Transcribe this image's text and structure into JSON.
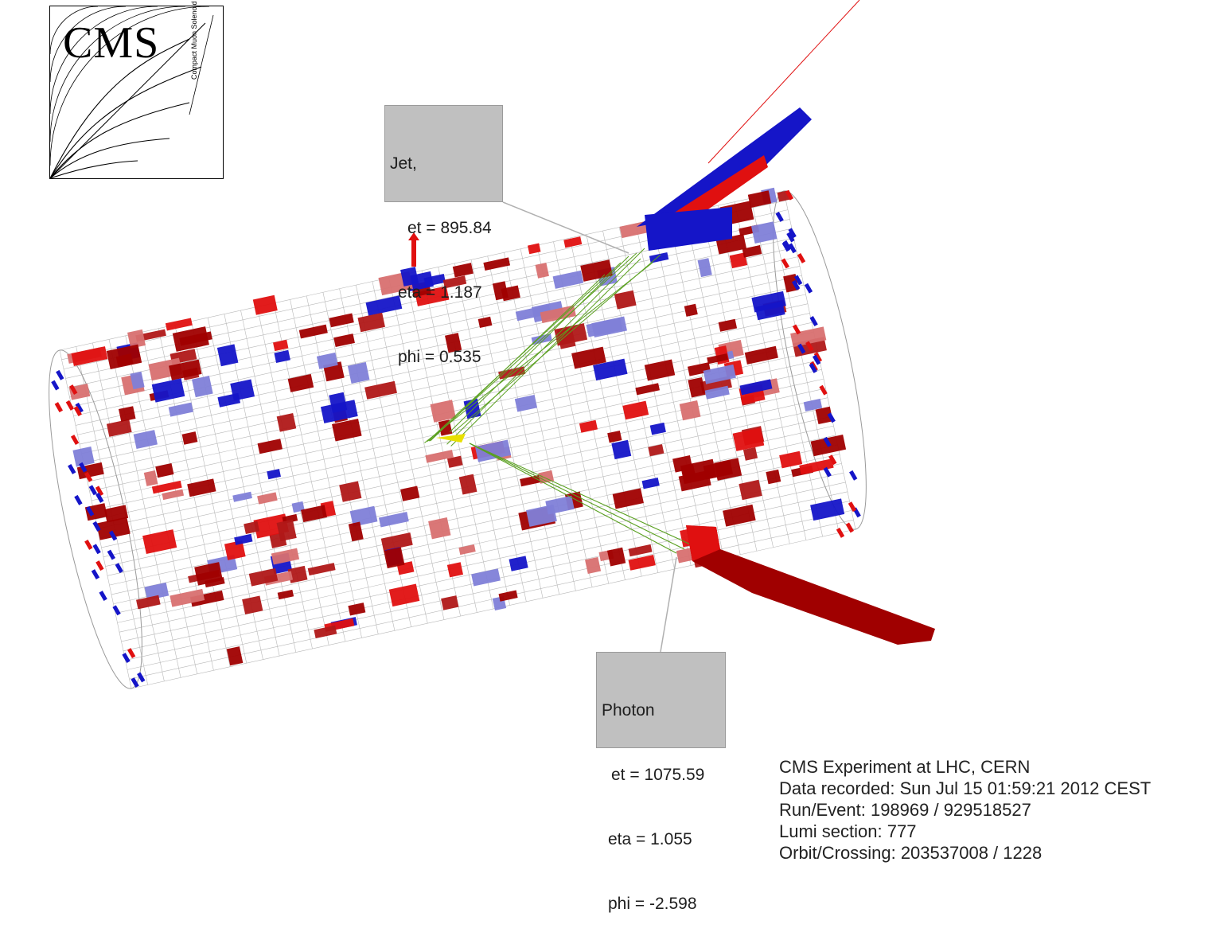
{
  "logo": {
    "word": "CMS",
    "subtitle": "Compact Muon Solenoid"
  },
  "jet_label": {
    "title": "Jet,",
    "et": "et = 895.84",
    "eta": "eta = 1.187",
    "phi": "phi = 0.535"
  },
  "photon_label": {
    "title": "Photon",
    "et": "et = 1075.59",
    "eta": "eta = 1.055",
    "phi": "phi = -2.598"
  },
  "event_info": {
    "experiment": "CMS Experiment at LHC, CERN",
    "recorded": "Data recorded: Sun Jul 15 01:59:21 2012 CEST",
    "run_event": "Run/Event: 198969 / 929518527",
    "lumi": "Lumi section: 777",
    "orbit": "Orbit/Crossing: 203537008 / 1228"
  },
  "colors": {
    "ecal": "#e01010",
    "ecal_dark": "#a00000",
    "hcal": "#1515c8",
    "tracks": "#5aa020",
    "mesh": "#b8b8b8"
  }
}
